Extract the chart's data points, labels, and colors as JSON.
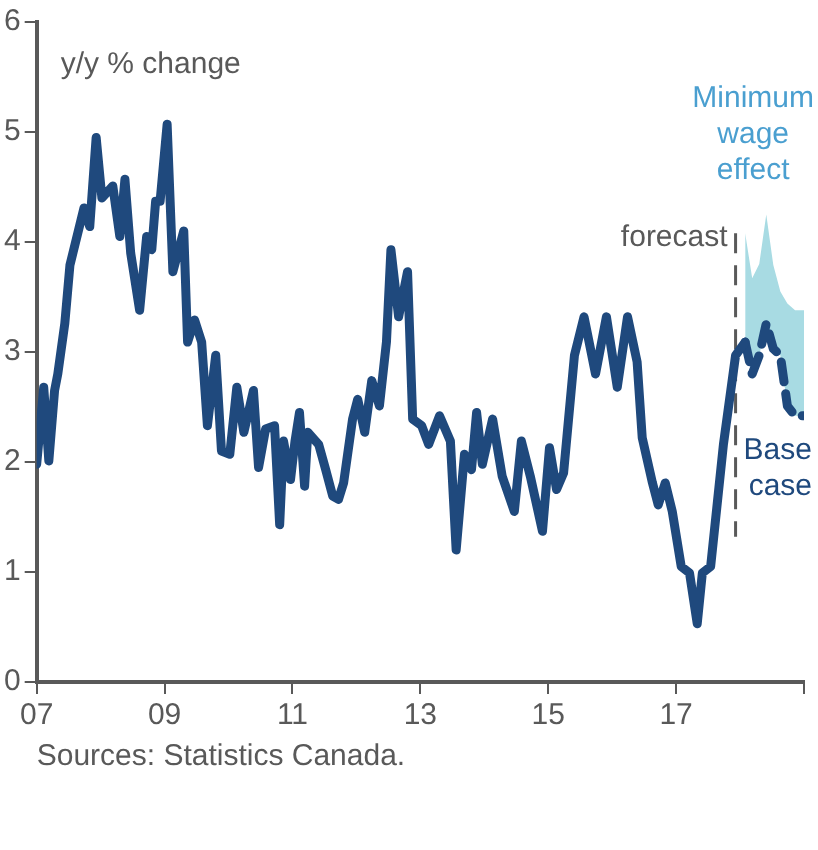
{
  "chart_data": {
    "type": "line",
    "ylabel": "y/y % change",
    "x": [
      2007.0,
      2007.11,
      2007.19,
      2007.28,
      2007.33,
      2007.44,
      2007.52,
      2007.74,
      2007.83,
      2007.93,
      2008.02,
      2008.19,
      2008.3,
      2008.38,
      2008.47,
      2008.61,
      2008.72,
      2008.8,
      2008.86,
      2008.93,
      2009.04,
      2009.13,
      2009.3,
      2009.36,
      2009.47,
      2009.58,
      2009.67,
      2009.8,
      2009.89,
      2010.02,
      2010.13,
      2010.24,
      2010.39,
      2010.47,
      2010.58,
      2010.72,
      2010.8,
      2010.86,
      2010.97,
      2011.04,
      2011.11,
      2011.19,
      2011.24,
      2011.41,
      2011.52,
      2011.63,
      2011.72,
      2011.8,
      2011.94,
      2012.02,
      2012.13,
      2012.24,
      2012.36,
      2012.47,
      2012.54,
      2012.66,
      2012.8,
      2012.88,
      2013.02,
      2013.13,
      2013.3,
      2013.47,
      2013.56,
      2013.69,
      2013.8,
      2013.88,
      2013.97,
      2014.13,
      2014.28,
      2014.47,
      2014.58,
      2014.72,
      2014.91,
      2015.02,
      2015.13,
      2015.24,
      2015.41,
      2015.56,
      2015.74,
      2015.91,
      2016.08,
      2016.24,
      2016.39,
      2016.47,
      2016.63,
      2016.72,
      2016.83,
      2016.94,
      2017.08,
      2017.21,
      2017.33,
      2017.41,
      2017.54,
      2017.74,
      2017.93,
      2018.08
    ],
    "series": [
      {
        "color": "#1f497d",
        "line_style": "solid",
        "values": [
          1.98,
          2.68,
          2.01,
          2.65,
          2.8,
          3.26,
          3.79,
          4.31,
          4.14,
          4.95,
          4.4,
          4.51,
          4.05,
          4.57,
          3.9,
          3.38,
          4.05,
          3.93,
          4.37,
          4.37,
          5.07,
          3.73,
          4.1,
          3.09,
          3.29,
          3.09,
          2.33,
          2.97,
          2.1,
          2.07,
          2.68,
          2.27,
          2.65,
          1.95,
          2.3,
          2.33,
          1.43,
          2.19,
          1.84,
          2.19,
          2.45,
          1.78,
          2.27,
          2.16,
          1.93,
          1.69,
          1.66,
          1.81,
          2.39,
          2.57,
          2.27,
          2.74,
          2.51,
          3.09,
          3.93,
          3.32,
          3.73,
          2.39,
          2.33,
          2.16,
          2.42,
          2.19,
          1.2,
          2.07,
          1.93,
          2.45,
          1.98,
          2.39,
          1.87,
          1.55,
          2.19,
          1.87,
          1.37,
          2.13,
          1.75,
          1.9,
          2.97,
          3.32,
          2.8,
          3.32,
          2.68,
          3.32,
          2.91,
          2.22,
          1.81,
          1.61,
          1.81,
          1.55,
          1.05,
          0.99,
          0.53,
          0.99,
          1.05,
          2.16,
          2.97,
          3.09
        ]
      },
      {
        "name": "Base case",
        "color": "#1f497d",
        "line_style": "dashed",
        "x": [
          2018.08,
          2018.19,
          2018.3,
          2018.41,
          2018.52,
          2018.63,
          2018.74,
          2018.86,
          2019.0
        ],
        "values": [
          3.09,
          2.8,
          2.97,
          3.26,
          3.03,
          2.97,
          2.51,
          2.42,
          2.42
        ],
        "lower": [
          3.09,
          2.8,
          2.97,
          3.26,
          3.03,
          2.97,
          2.51,
          2.42,
          2.42
        ],
        "upper": [
          4.08,
          3.67,
          3.8,
          4.25,
          3.79,
          3.55,
          3.44,
          3.38,
          3.38
        ]
      }
    ],
    "xlim": [
      2007,
      2019
    ],
    "xticks": [
      {
        "value": 2007,
        "label": "07"
      },
      {
        "value": 2009,
        "label": "09"
      },
      {
        "value": 2011,
        "label": "11"
      },
      {
        "value": 2013,
        "label": "13"
      },
      {
        "value": 2015,
        "label": "15"
      },
      {
        "value": 2017,
        "label": "17"
      },
      {
        "value": 2019,
        "label": null
      }
    ],
    "ylim": [
      0,
      6
    ],
    "yticks": [
      0,
      1,
      2,
      3,
      4,
      5,
      6
    ],
    "grid": false,
    "legend": false,
    "marker": "none",
    "ref_lines": [
      {
        "axis": "x",
        "value": 2017.93,
        "label": "forecast",
        "color": "#595959",
        "line_style": "dashed"
      }
    ],
    "annotations": [
      {
        "text": "Minimum wage effect",
        "x": 2018.41,
        "y": 4.25
      },
      "Sources: Statistics Canada."
    ]
  }
}
